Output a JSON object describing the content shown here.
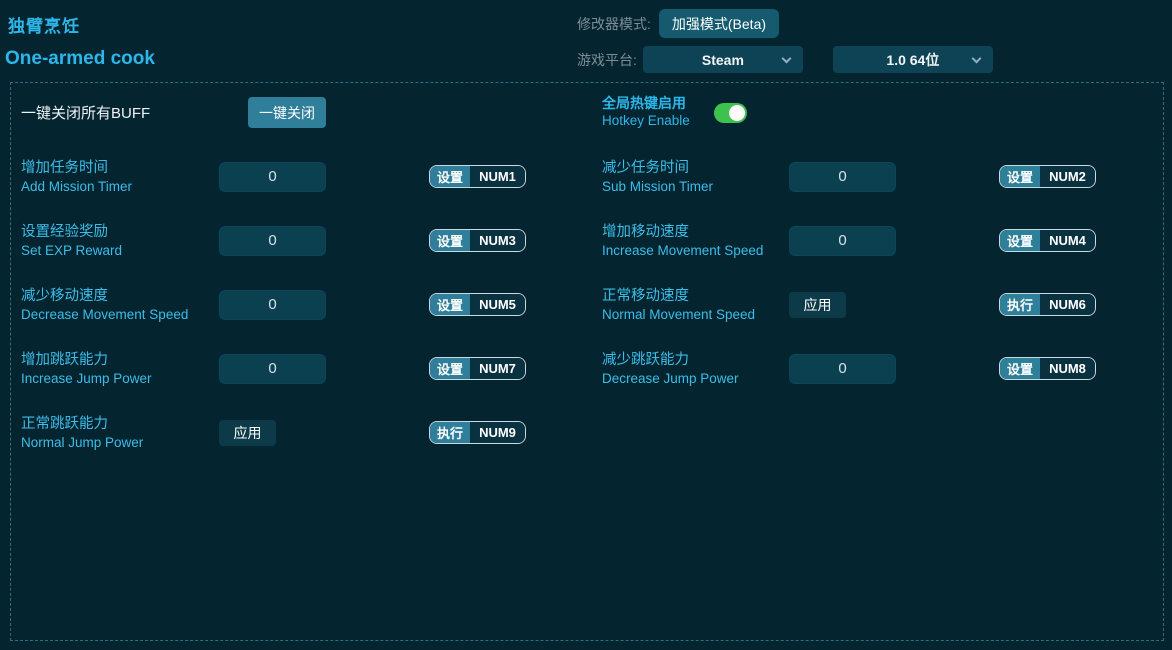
{
  "header": {
    "title_cn": "独臂烹饪",
    "title_en": "One-armed cook",
    "mode_label": "修改器模式:",
    "mode_button": "加强模式(Beta)",
    "platform_label": "游戏平台:",
    "platform_value": "Steam",
    "version_value": "1.0 64位"
  },
  "panel": {
    "buff_label": "一键关闭所有BUFF",
    "buff_button": "一键关闭",
    "hotkey_cn": "全局热键启用",
    "hotkey_en": "Hotkey Enable",
    "hotkey_enabled": true
  },
  "colors": {
    "background": "#042530",
    "accent_cyan": "#2cb6e9",
    "label_cyan": "#3cbde9",
    "action_teal": "#2f7f9a",
    "toggle_on_green": "#3ec24e",
    "panel_border": "#2c6e86"
  },
  "rows": [
    {
      "cn": "增加任务时间",
      "en": "Add Mission Timer",
      "control": "input",
      "value": "0",
      "action": "设置",
      "hotkey": "NUM1"
    },
    {
      "cn": "减少任务时间",
      "en": "Sub Mission Timer",
      "control": "input",
      "value": "0",
      "action": "设置",
      "hotkey": "NUM2"
    },
    {
      "cn": "设置经验奖励",
      "en": "Set EXP Reward",
      "control": "input",
      "value": "0",
      "action": "设置",
      "hotkey": "NUM3"
    },
    {
      "cn": "增加移动速度",
      "en": "Increase Movement Speed",
      "control": "input",
      "value": "0",
      "action": "设置",
      "hotkey": "NUM4"
    },
    {
      "cn": "减少移动速度",
      "en": "Decrease Movement Speed",
      "control": "input",
      "value": "0",
      "action": "设置",
      "hotkey": "NUM5"
    },
    {
      "cn": "正常移动速度",
      "en": "Normal Movement Speed",
      "control": "apply",
      "apply_label": "应用",
      "action": "执行",
      "hotkey": "NUM6"
    },
    {
      "cn": "增加跳跃能力",
      "en": "Increase Jump Power",
      "control": "input",
      "value": "0",
      "action": "设置",
      "hotkey": "NUM7"
    },
    {
      "cn": "减少跳跃能力",
      "en": "Decrease Jump Power",
      "control": "input",
      "value": "0",
      "action": "设置",
      "hotkey": "NUM8"
    },
    {
      "cn": "正常跳跃能力",
      "en": "Normal Jump Power",
      "control": "apply",
      "apply_label": "应用",
      "action": "执行",
      "hotkey": "NUM9"
    }
  ]
}
